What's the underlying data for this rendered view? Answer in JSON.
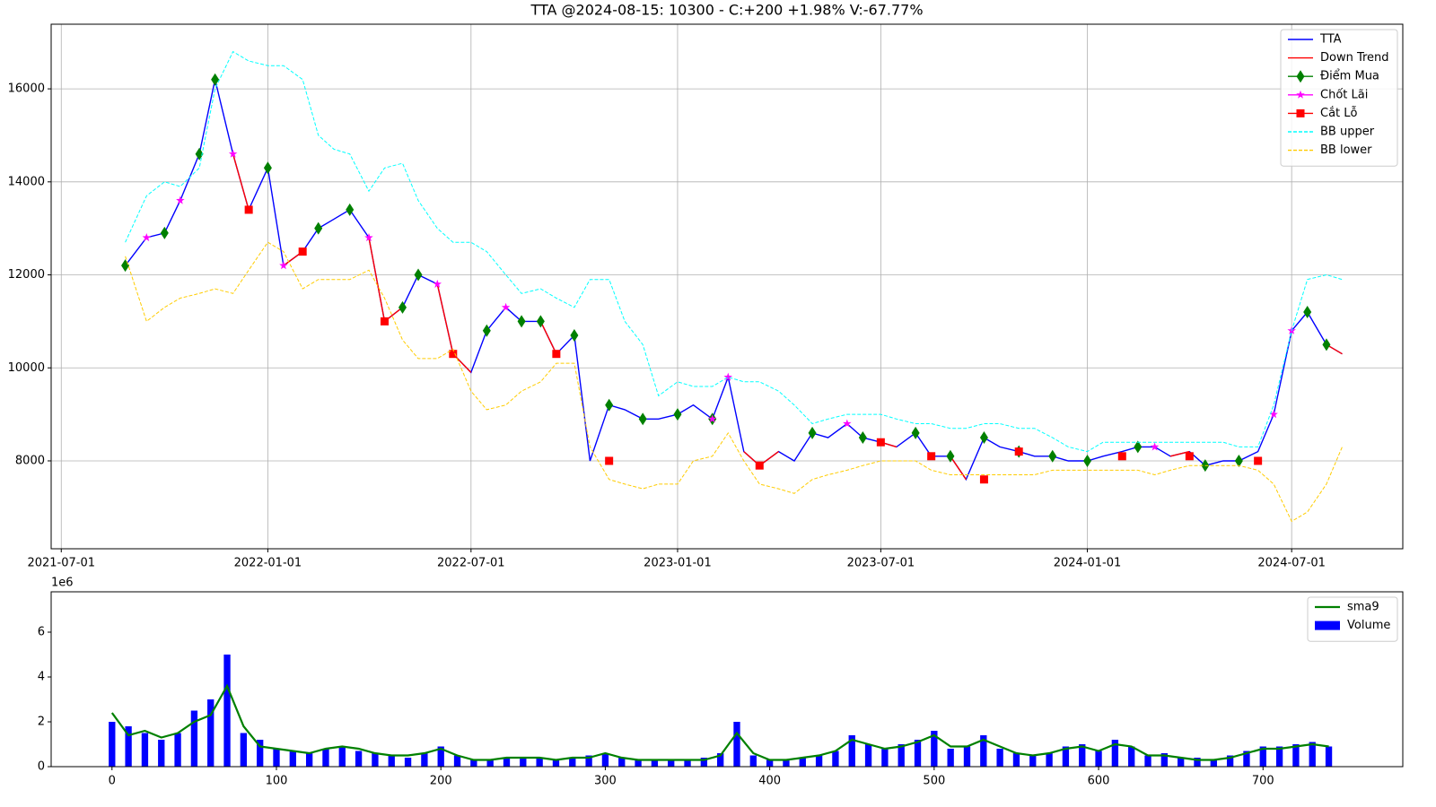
{
  "chart_data": [
    {
      "type": "line",
      "title": "TTA @2024-08-15: 10300 - C:+200 +1.98% V:-67.77%",
      "grid": true,
      "legend": "upper right",
      "x": [
        "2021-08-27",
        "2021-09-15",
        "2021-10-01",
        "2021-10-15",
        "2021-11-01",
        "2021-11-15",
        "2021-12-01",
        "2021-12-15",
        "2022-01-01",
        "2022-01-15",
        "2022-02-01",
        "2022-02-15",
        "2022-03-01",
        "2022-03-15",
        "2022-04-01",
        "2022-04-15",
        "2022-05-01",
        "2022-05-15",
        "2022-06-01",
        "2022-06-15",
        "2022-07-01",
        "2022-07-15",
        "2022-08-01",
        "2022-08-15",
        "2022-09-01",
        "2022-09-15",
        "2022-10-01",
        "2022-10-15",
        "2022-11-01",
        "2022-11-15",
        "2022-12-01",
        "2022-12-15",
        "2023-01-01",
        "2023-01-15",
        "2023-02-01",
        "2023-02-15",
        "2023-03-01",
        "2023-03-15",
        "2023-04-01",
        "2023-04-15",
        "2023-05-01",
        "2023-05-15",
        "2023-06-01",
        "2023-06-15",
        "2023-07-01",
        "2023-07-15",
        "2023-08-01",
        "2023-08-15",
        "2023-09-01",
        "2023-09-15",
        "2023-10-01",
        "2023-10-15",
        "2023-11-01",
        "2023-11-15",
        "2023-12-01",
        "2023-12-15",
        "2024-01-01",
        "2024-01-15",
        "2024-02-01",
        "2024-02-15",
        "2024-03-01",
        "2024-03-15",
        "2024-04-01",
        "2024-04-15",
        "2024-05-01",
        "2024-05-15",
        "2024-06-01",
        "2024-06-15",
        "2024-07-01",
        "2024-07-15",
        "2024-08-01",
        "2024-08-15"
      ],
      "xlim": [
        "2021-06-22",
        "2024-10-08"
      ],
      "xticks": [
        "2021-07-01",
        "2022-01-01",
        "2022-07-01",
        "2023-01-01",
        "2023-07-01",
        "2024-01-01",
        "2024-07-01"
      ],
      "ylim": [
        6110,
        17390
      ],
      "yticks": [
        8000,
        10000,
        12000,
        14000,
        16000
      ],
      "series": [
        {
          "name": "TTA",
          "color": "#0000ff",
          "style": "line",
          "values": [
            12200,
            12800,
            12900,
            13600,
            14600,
            16200,
            14600,
            13400,
            14300,
            12200,
            12500,
            13000,
            13200,
            13400,
            12800,
            11000,
            11300,
            12000,
            11800,
            10300,
            9900,
            10800,
            11300,
            11000,
            11000,
            10300,
            10700,
            8000,
            9200,
            9100,
            8900,
            8900,
            9000,
            9200,
            8900,
            9800,
            8200,
            7900,
            8200,
            8000,
            8600,
            8500,
            8800,
            8500,
            8400,
            8300,
            8600,
            8100,
            8100,
            7600,
            8500,
            8300,
            8200,
            8100,
            8100,
            8000,
            8000,
            8100,
            8200,
            8300,
            8300,
            8100,
            8200,
            7900,
            8000,
            8000,
            8200,
            9000,
            10800,
            11200,
            10500,
            10300
          ]
        },
        {
          "name": "Down Trend",
          "color": "#ff0000",
          "style": "line",
          "values": [
            null,
            null,
            null,
            null,
            null,
            null,
            14600,
            13400,
            null,
            12200,
            12500,
            null,
            null,
            null,
            12800,
            11000,
            11300,
            null,
            11800,
            10300,
            9900,
            null,
            null,
            null,
            11000,
            10300,
            null,
            null,
            9200,
            null,
            null,
            null,
            null,
            null,
            null,
            null,
            8200,
            7900,
            8200,
            null,
            null,
            null,
            null,
            null,
            8400,
            8300,
            null,
            null,
            8100,
            7600,
            null,
            null,
            null,
            null,
            null,
            null,
            null,
            null,
            null,
            null,
            null,
            8100,
            8200,
            null,
            null,
            null,
            null,
            null,
            null,
            null,
            10500,
            10300
          ]
        },
        {
          "name": "Điểm Mua",
          "color": "#008000",
          "style": "marker",
          "marker": "diamond",
          "values": [
            12200,
            null,
            12900,
            null,
            14600,
            16200,
            null,
            null,
            14300,
            null,
            null,
            13000,
            null,
            13400,
            null,
            null,
            11300,
            12000,
            null,
            null,
            null,
            10800,
            null,
            11000,
            11000,
            null,
            10700,
            null,
            9200,
            null,
            8900,
            null,
            9000,
            null,
            8900,
            null,
            null,
            null,
            null,
            null,
            8600,
            null,
            null,
            8500,
            null,
            null,
            8600,
            null,
            8100,
            null,
            8500,
            null,
            8200,
            null,
            8100,
            null,
            8000,
            null,
            null,
            8300,
            null,
            null,
            null,
            7900,
            null,
            8000,
            null,
            null,
            null,
            11200,
            10500,
            null
          ]
        },
        {
          "name": "Chốt Lãi",
          "color": "#ff00ff",
          "style": "marker",
          "marker": "star",
          "values": [
            null,
            12800,
            null,
            13600,
            null,
            null,
            14600,
            null,
            null,
            12200,
            null,
            null,
            null,
            null,
            12800,
            null,
            null,
            null,
            11800,
            null,
            null,
            null,
            11300,
            null,
            null,
            null,
            null,
            null,
            null,
            null,
            null,
            null,
            null,
            null,
            8900,
            9800,
            null,
            null,
            null,
            null,
            null,
            null,
            8800,
            null,
            null,
            null,
            null,
            null,
            null,
            null,
            null,
            null,
            null,
            null,
            null,
            null,
            null,
            null,
            null,
            null,
            8300,
            null,
            null,
            null,
            null,
            null,
            null,
            9000,
            10800,
            null,
            null,
            null
          ]
        },
        {
          "name": "Cắt Lỗ",
          "color": "#ff0000",
          "style": "marker",
          "marker": "square",
          "values": [
            null,
            null,
            null,
            null,
            null,
            null,
            null,
            13400,
            null,
            null,
            12500,
            null,
            null,
            null,
            null,
            11000,
            null,
            null,
            null,
            10300,
            null,
            null,
            null,
            null,
            null,
            10300,
            null,
            null,
            8000,
            null,
            null,
            null,
            null,
            null,
            null,
            null,
            null,
            7900,
            null,
            null,
            null,
            null,
            null,
            null,
            8400,
            null,
            null,
            8100,
            null,
            null,
            7600,
            null,
            8200,
            null,
            null,
            null,
            null,
            null,
            8100,
            null,
            null,
            null,
            8100,
            null,
            null,
            null,
            8000,
            null,
            null,
            null,
            null,
            null
          ]
        },
        {
          "name": "BB upper",
          "color": "#00ffff",
          "style": "dashed",
          "values": [
            12700,
            13700,
            14000,
            13900,
            14300,
            16000,
            16800,
            16600,
            16500,
            16500,
            16200,
            15000,
            14700,
            14600,
            13800,
            14300,
            14400,
            13600,
            13000,
            12700,
            12700,
            12500,
            12000,
            11600,
            11700,
            11500,
            11300,
            11900,
            11900,
            11000,
            10500,
            9400,
            9700,
            9600,
            9600,
            9800,
            9700,
            9700,
            9500,
            9200,
            8800,
            8900,
            9000,
            9000,
            9000,
            8900,
            8800,
            8800,
            8700,
            8700,
            8800,
            8800,
            8700,
            8700,
            8500,
            8300,
            8200,
            8400,
            8400,
            8400,
            8400,
            8400,
            8400,
            8400,
            8400,
            8300,
            8300,
            9200,
            10800,
            11900,
            12000,
            11900
          ]
        },
        {
          "name": "BB lower",
          "color": "#ffcc00",
          "style": "dashed",
          "values": [
            12400,
            11000,
            11300,
            11500,
            11600,
            11700,
            11600,
            12100,
            12700,
            12500,
            11700,
            11900,
            11900,
            11900,
            12100,
            11500,
            10600,
            10200,
            10200,
            10400,
            9500,
            9100,
            9200,
            9500,
            9700,
            10100,
            10100,
            8300,
            7600,
            7500,
            7400,
            7500,
            7500,
            8000,
            8100,
            8600,
            8000,
            7500,
            7400,
            7300,
            7600,
            7700,
            7800,
            7900,
            8000,
            8000,
            8000,
            7800,
            7700,
            7700,
            7700,
            7700,
            7700,
            7700,
            7800,
            7800,
            7800,
            7800,
            7800,
            7800,
            7700,
            7800,
            7900,
            7900,
            7900,
            7900,
            7800,
            7500,
            6700,
            6900,
            7500,
            8300
          ]
        }
      ]
    },
    {
      "type": "bar",
      "y_offset_label": "1e6",
      "grid": false,
      "legend": "upper right",
      "x": [
        0,
        10,
        20,
        30,
        40,
        50,
        60,
        70,
        80,
        90,
        100,
        110,
        120,
        130,
        140,
        150,
        160,
        170,
        180,
        190,
        200,
        210,
        220,
        230,
        240,
        250,
        260,
        270,
        280,
        290,
        300,
        310,
        320,
        330,
        340,
        350,
        360,
        370,
        380,
        390,
        400,
        410,
        420,
        430,
        440,
        450,
        460,
        470,
        480,
        490,
        500,
        510,
        520,
        530,
        540,
        550,
        560,
        570,
        580,
        590,
        600,
        610,
        620,
        630,
        640,
        650,
        660,
        670,
        680,
        690,
        700,
        710,
        720,
        730,
        740
      ],
      "xlim": [
        -37,
        785
      ],
      "xticks": [
        0,
        100,
        200,
        300,
        400,
        500,
        600,
        700
      ],
      "ylim": [
        0,
        7.8
      ],
      "yticks": [
        0,
        2,
        4,
        6
      ],
      "series": [
        {
          "name": "sma9",
          "color": "#008000",
          "style": "line",
          "values": [
            2.4,
            1.4,
            1.6,
            1.3,
            1.5,
            2.0,
            2.3,
            3.6,
            1.8,
            0.9,
            0.8,
            0.7,
            0.6,
            0.8,
            0.9,
            0.8,
            0.6,
            0.5,
            0.5,
            0.6,
            0.8,
            0.5,
            0.3,
            0.3,
            0.4,
            0.4,
            0.4,
            0.3,
            0.4,
            0.4,
            0.6,
            0.4,
            0.3,
            0.3,
            0.3,
            0.3,
            0.3,
            0.5,
            1.5,
            0.6,
            0.3,
            0.3,
            0.4,
            0.5,
            0.7,
            1.2,
            1.0,
            0.8,
            0.9,
            1.1,
            1.4,
            0.9,
            0.9,
            1.2,
            0.9,
            0.6,
            0.5,
            0.6,
            0.8,
            0.9,
            0.7,
            1.0,
            0.9,
            0.5,
            0.5,
            0.4,
            0.3,
            0.3,
            0.4,
            0.6,
            0.8,
            0.8,
            0.9,
            1.0,
            0.9
          ]
        },
        {
          "name": "Volume",
          "color": "#0000ff",
          "style": "bar",
          "values": [
            2.0,
            1.8,
            1.5,
            1.2,
            1.5,
            2.5,
            3.0,
            5.0,
            1.5,
            1.2,
            0.8,
            0.7,
            0.6,
            0.8,
            0.9,
            0.7,
            0.6,
            0.5,
            0.4,
            0.6,
            0.9,
            0.5,
            0.3,
            0.3,
            0.4,
            0.4,
            0.4,
            0.3,
            0.4,
            0.5,
            0.6,
            0.4,
            0.3,
            0.3,
            0.3,
            0.3,
            0.4,
            0.6,
            2.0,
            0.5,
            0.3,
            0.3,
            0.4,
            0.5,
            0.7,
            1.4,
            1.0,
            0.8,
            1.0,
            1.2,
            1.6,
            0.8,
            0.9,
            1.4,
            0.8,
            0.6,
            0.5,
            0.6,
            0.9,
            1.0,
            0.7,
            1.2,
            0.9,
            0.5,
            0.6,
            0.4,
            0.4,
            0.3,
            0.5,
            0.7,
            0.9,
            0.9,
            1.0,
            1.1,
            0.9
          ]
        }
      ]
    }
  ]
}
